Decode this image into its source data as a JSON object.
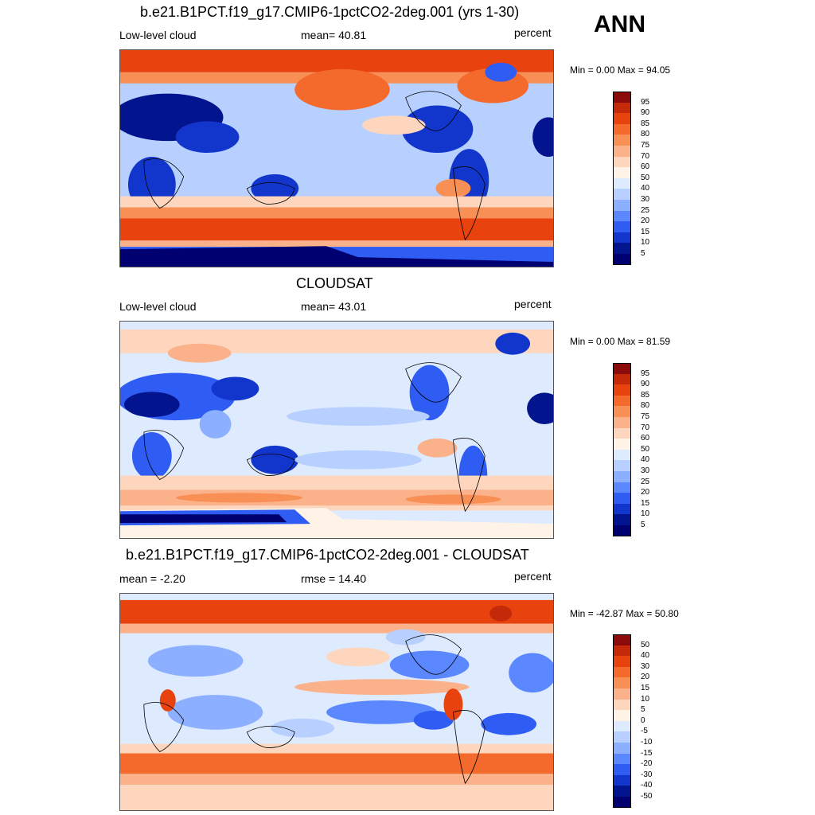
{
  "season": "ANN",
  "panels": [
    {
      "title": "b.e21.B1PCT.f19_g17.CMIP6-1pctCO2-2deg.001 (yrs 1-30)",
      "left_label": "Low-level cloud",
      "center_label": "mean=  40.81",
      "right_label": "percent",
      "minmax": "Min =   0.00 Max =  94.05",
      "colorbar_levels": [
        "95",
        "90",
        "85",
        "80",
        "75",
        "70",
        "60",
        "50",
        "40",
        "30",
        "25",
        "20",
        "15",
        "10",
        "5"
      ],
      "colorbar_colors": [
        "#8b0a0a",
        "#c42a0a",
        "#e8420e",
        "#f46a2c",
        "#f88f55",
        "#fbb28a",
        "#fdd6bd",
        "#fff3e8",
        "#deebff",
        "#b8d0ff",
        "#8cb0ff",
        "#5b88ff",
        "#2f5cf2",
        "#1236cc",
        "#03148f",
        "#000070"
      ]
    },
    {
      "title": "CLOUDSAT",
      "left_label": "Low-level cloud",
      "center_label": "mean=  43.01",
      "right_label": "percent",
      "minmax": "Min =   0.00 Max =  81.59",
      "colorbar_levels": [
        "95",
        "90",
        "85",
        "80",
        "75",
        "70",
        "60",
        "50",
        "40",
        "30",
        "25",
        "20",
        "15",
        "10",
        "5"
      ],
      "colorbar_colors": [
        "#8b0a0a",
        "#c42a0a",
        "#e8420e",
        "#f46a2c",
        "#f88f55",
        "#fbb28a",
        "#fdd6bd",
        "#fff3e8",
        "#deebff",
        "#b8d0ff",
        "#8cb0ff",
        "#5b88ff",
        "#2f5cf2",
        "#1236cc",
        "#03148f",
        "#000070"
      ]
    },
    {
      "title": "b.e21.B1PCT.f19_g17.CMIP6-1pctCO2-2deg.001 - CLOUDSAT",
      "left_label": "mean =  -2.20",
      "center_label": "rmse =  14.40",
      "right_label": "percent",
      "minmax": "Min = -42.87 Max =  50.80",
      "colorbar_levels": [
        "50",
        "40",
        "30",
        "20",
        "15",
        "10",
        "5",
        "0",
        "-5",
        "-10",
        "-15",
        "-20",
        "-30",
        "-40",
        "-50"
      ],
      "colorbar_colors": [
        "#8b0a0a",
        "#c42a0a",
        "#e8420e",
        "#f46a2c",
        "#f88f55",
        "#fbb28a",
        "#fdd6bd",
        "#fff3e8",
        "#deebff",
        "#b8d0ff",
        "#8cb0ff",
        "#5b88ff",
        "#2f5cf2",
        "#1236cc",
        "#03148f",
        "#000070"
      ]
    }
  ]
}
